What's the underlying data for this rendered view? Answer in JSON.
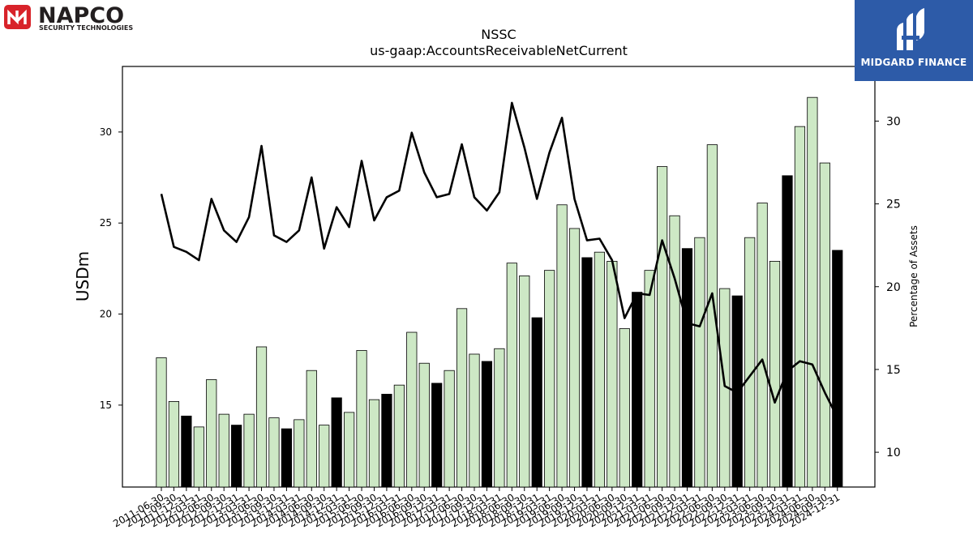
{
  "brand_left": {
    "name": "NAPCO",
    "tagline": "SECURITY TECHNOLOGIES",
    "mark_color": "#d8232a"
  },
  "brand_right": {
    "name": "MIDGARD FINANCE",
    "background_color": "#2d5ba8"
  },
  "chart_data": {
    "type": "bar",
    "title": "NSSC",
    "subtitle": "us-gaap:AccountsReceivableNetCurrent",
    "ylabel": "USDm",
    "y2label": "Percentage of Assets",
    "ylim": [
      10.5,
      33.6
    ],
    "y2lim": [
      7.9,
      33.3
    ],
    "yticks": [
      15,
      20,
      25,
      30
    ],
    "y2ticks": [
      10,
      15,
      20,
      25,
      30
    ],
    "grid": false,
    "colors": {
      "bar_default": "#cde8c5",
      "bar_q4": "#000000",
      "line": "#000000"
    },
    "categories": [
      "2011-06-30",
      "2011-09-30",
      "2011-12-31",
      "2012-03-31",
      "2012-06-30",
      "2012-09-30",
      "2012-12-31",
      "2013-03-31",
      "2013-06-30",
      "2013-09-30",
      "2013-12-31",
      "2014-03-31",
      "2014-06-30",
      "2014-09-30",
      "2014-12-31",
      "2015-03-31",
      "2015-06-30",
      "2015-09-30",
      "2015-12-31",
      "2016-03-31",
      "2016-06-30",
      "2016-09-30",
      "2016-12-31",
      "2017-03-31",
      "2017-06-30",
      "2017-09-30",
      "2017-12-31",
      "2018-03-31",
      "2018-06-30",
      "2018-09-30",
      "2018-12-31",
      "2019-03-31",
      "2019-06-30",
      "2019-09-30",
      "2019-12-31",
      "2020-03-31",
      "2020-06-30",
      "2020-09-30",
      "2020-12-31",
      "2021-03-31",
      "2021-06-30",
      "2021-09-30",
      "2021-12-31",
      "2022-03-31",
      "2022-06-30",
      "2022-09-30",
      "2022-12-31",
      "2023-03-31",
      "2023-06-30",
      "2023-09-30",
      "2023-12-31",
      "2024-03-31",
      "2024-06-30",
      "2024-09-30",
      "2024-12-31"
    ],
    "series": [
      {
        "kind": "bar",
        "highlight_indices": [
          2,
          6,
          10,
          14,
          18,
          22,
          26,
          30,
          34,
          38,
          42,
          46,
          50,
          54
        ],
        "values": [
          17.6,
          15.2,
          14.4,
          13.8,
          16.4,
          14.5,
          13.9,
          14.5,
          18.2,
          14.3,
          13.7,
          14.2,
          16.9,
          13.9,
          15.4,
          14.6,
          18.0,
          15.3,
          15.6,
          16.1,
          19.0,
          17.3,
          16.2,
          16.9,
          20.3,
          17.8,
          17.4,
          18.1,
          22.8,
          22.1,
          19.8,
          22.4,
          26.0,
          24.7,
          23.1,
          23.4,
          22.9,
          19.2,
          21.2,
          22.4,
          28.1,
          25.4,
          23.6,
          24.2,
          29.3,
          21.4,
          21.0,
          24.2,
          26.1,
          22.9,
          27.6,
          30.3,
          31.9,
          28.3,
          23.5
        ]
      },
      {
        "kind": "line",
        "axis": "right",
        "values": [
          25.6,
          22.4,
          22.1,
          21.6,
          25.3,
          23.4,
          22.7,
          24.2,
          28.5,
          23.1,
          22.7,
          23.4,
          26.6,
          22.3,
          24.8,
          23.6,
          27.6,
          24.0,
          25.4,
          25.8,
          29.3,
          26.9,
          25.4,
          25.6,
          28.6,
          25.4,
          24.6,
          25.7,
          31.1,
          28.4,
          25.3,
          28.1,
          30.2,
          25.3,
          22.8,
          22.9,
          21.6,
          18.1,
          19.6,
          19.5,
          22.8,
          20.5,
          17.8,
          17.6,
          19.6,
          14.0,
          13.6,
          14.6,
          15.6,
          13.0,
          14.9,
          15.5,
          15.3,
          13.6,
          12.1
        ]
      }
    ]
  }
}
